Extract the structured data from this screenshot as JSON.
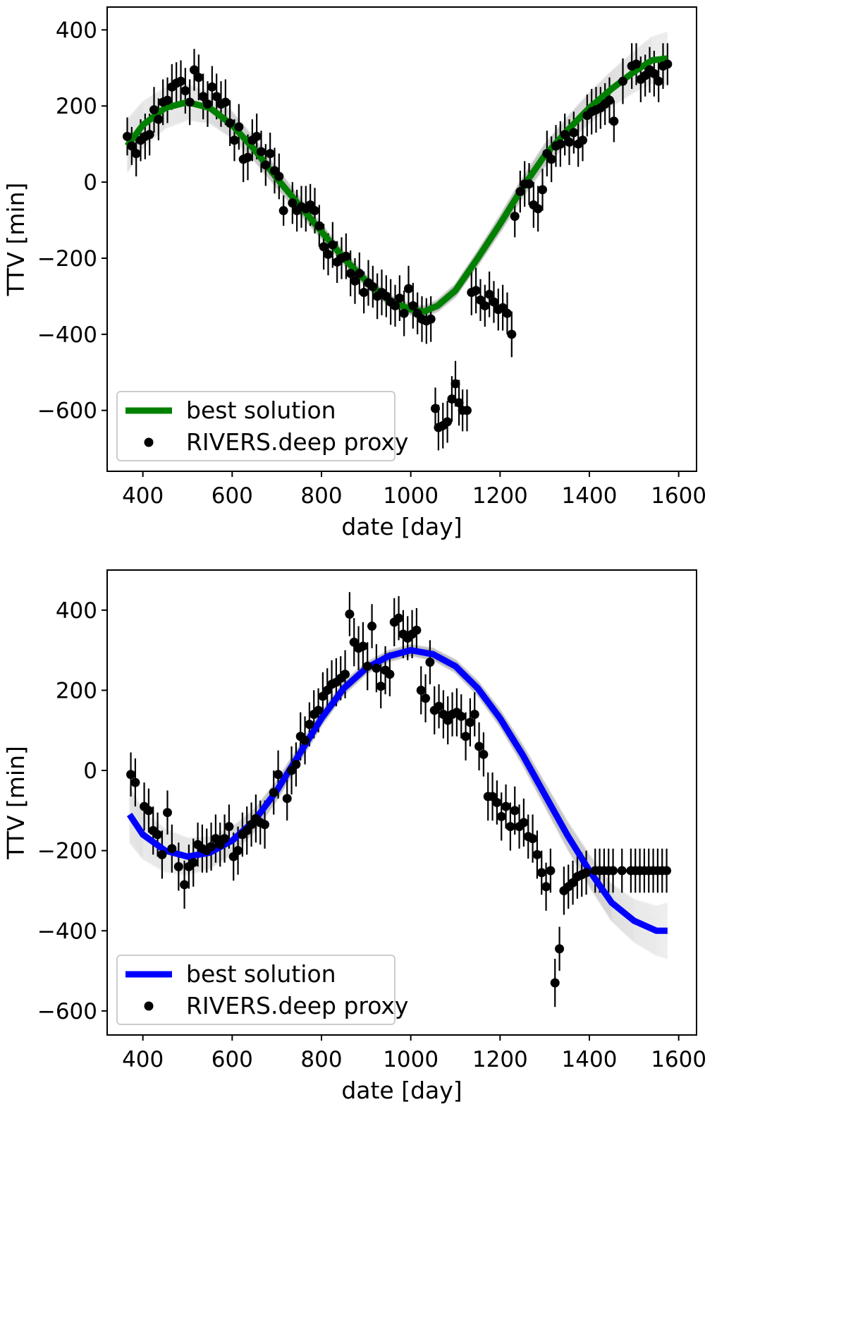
{
  "chart_data": [
    {
      "type": "scatter",
      "title": "",
      "xlabel": "date [day]",
      "ylabel": "TTV [min]",
      "xlim": [
        320,
        1640
      ],
      "ylim": [
        -760,
        460
      ],
      "xticks": [
        400,
        600,
        800,
        1000,
        1200,
        1400,
        1600
      ],
      "yticks": [
        400,
        200,
        0,
        -200,
        -400,
        -600
      ],
      "legend": {
        "position": "lower-left",
        "entries": [
          "best solution",
          "RIVERS.deep proxy"
        ]
      },
      "best_solution": {
        "name": "best solution",
        "color": "#008000",
        "x": [
          365,
          400,
          450,
          500,
          550,
          600,
          650,
          700,
          750,
          800,
          850,
          900,
          950,
          1000,
          1030,
          1060,
          1100,
          1150,
          1200,
          1250,
          1300,
          1350,
          1400,
          1450,
          1500,
          1540,
          1575
        ],
        "y": [
          95,
          150,
          195,
          210,
          195,
          150,
          85,
          10,
          -60,
          -130,
          -200,
          -260,
          -310,
          -335,
          -340,
          -325,
          -285,
          -200,
          -110,
          -15,
          70,
          135,
          195,
          245,
          290,
          320,
          325
        ]
      },
      "points": {
        "name": "RIVERS.deep proxy",
        "color": "#000000",
        "x": [
          365,
          375,
          385,
          395,
          405,
          415,
          425,
          435,
          445,
          455,
          465,
          475,
          485,
          495,
          505,
          515,
          525,
          535,
          545,
          555,
          565,
          575,
          585,
          595,
          605,
          615,
          625,
          635,
          645,
          655,
          665,
          675,
          685,
          695,
          705,
          715,
          735,
          745,
          755,
          765,
          775,
          785,
          795,
          805,
          815,
          825,
          835,
          845,
          855,
          865,
          875,
          885,
          895,
          905,
          915,
          925,
          935,
          945,
          955,
          965,
          975,
          985,
          995,
          1005,
          1015,
          1025,
          1035,
          1045,
          1055,
          1062,
          1072,
          1082,
          1092,
          1100,
          1108,
          1116,
          1126,
          1136,
          1146,
          1156,
          1166,
          1176,
          1186,
          1196,
          1206,
          1216,
          1226,
          1233,
          1245,
          1255,
          1265,
          1275,
          1285,
          1295,
          1305,
          1315,
          1325,
          1335,
          1345,
          1355,
          1365,
          1375,
          1385,
          1395,
          1405,
          1415,
          1425,
          1435,
          1445,
          1455,
          1475,
          1495,
          1505,
          1515,
          1525,
          1535,
          1545,
          1555,
          1565,
          1575
        ],
        "y": [
          120,
          95,
          75,
          110,
          120,
          125,
          190,
          165,
          210,
          215,
          250,
          260,
          265,
          240,
          210,
          295,
          275,
          225,
          205,
          250,
          225,
          205,
          210,
          155,
          110,
          145,
          60,
          65,
          110,
          120,
          80,
          45,
          75,
          30,
          15,
          -75,
          -55,
          -75,
          -65,
          -70,
          -60,
          -75,
          -115,
          -170,
          -190,
          -165,
          -210,
          -200,
          -195,
          -240,
          -260,
          -240,
          -290,
          -265,
          -275,
          -300,
          -290,
          -300,
          -315,
          -325,
          -305,
          -345,
          -280,
          -325,
          -345,
          -360,
          -365,
          -360,
          -595,
          -645,
          -640,
          -630,
          -570,
          -530,
          -580,
          -600,
          -600,
          -290,
          -285,
          -310,
          -325,
          -295,
          -315,
          -335,
          -330,
          -345,
          -400,
          -90,
          -25,
          -5,
          -5,
          -60,
          -70,
          -20,
          75,
          60,
          95,
          100,
          125,
          105,
          130,
          100,
          110,
          175,
          185,
          190,
          195,
          205,
          215,
          160,
          265,
          305,
          310,
          270,
          280,
          295,
          285,
          265,
          305,
          310
        ],
        "err": [
          50,
          50,
          60,
          55,
          60,
          55,
          60,
          55,
          60,
          60,
          60,
          55,
          55,
          60,
          60,
          55,
          60,
          60,
          60,
          55,
          60,
          60,
          60,
          60,
          55,
          60,
          60,
          60,
          55,
          60,
          55,
          55,
          55,
          60,
          60,
          40,
          55,
          55,
          55,
          60,
          55,
          60,
          55,
          60,
          55,
          60,
          55,
          55,
          60,
          60,
          60,
          55,
          55,
          60,
          55,
          60,
          60,
          55,
          60,
          55,
          60,
          60,
          60,
          60,
          55,
          60,
          60,
          60,
          55,
          60,
          60,
          55,
          60,
          60,
          60,
          55,
          55,
          60,
          60,
          55,
          55,
          60,
          55,
          55,
          60,
          55,
          60,
          55,
          55,
          60,
          55,
          60,
          60,
          55,
          60,
          60,
          55,
          60,
          55,
          60,
          55,
          60,
          55,
          55,
          60,
          60,
          55,
          55,
          60,
          55,
          60,
          60,
          55,
          60,
          55,
          60,
          60,
          55,
          60,
          55
        ]
      }
    },
    {
      "type": "scatter",
      "title": "",
      "xlabel": "date [day]",
      "ylabel": "TTV [min]",
      "xlim": [
        320,
        1640
      ],
      "ylim": [
        -660,
        500
      ],
      "xticks": [
        400,
        600,
        800,
        1000,
        1200,
        1400,
        1600
      ],
      "yticks": [
        400,
        200,
        0,
        -200,
        -400,
        -600
      ],
      "legend": {
        "position": "lower-left",
        "entries": [
          "best solution",
          "RIVERS.deep proxy"
        ]
      },
      "best_solution": {
        "name": "best solution",
        "color": "#0000ff",
        "x": [
          370,
          400,
          450,
          500,
          550,
          600,
          650,
          700,
          750,
          800,
          850,
          900,
          950,
          1000,
          1050,
          1100,
          1150,
          1200,
          1250,
          1300,
          1350,
          1400,
          1450,
          1500,
          1550,
          1575
        ],
        "y": [
          -110,
          -160,
          -200,
          -215,
          -205,
          -175,
          -125,
          -50,
          40,
          130,
          205,
          255,
          285,
          300,
          290,
          260,
          205,
          130,
          40,
          -60,
          -160,
          -250,
          -330,
          -375,
          -400,
          -400
        ]
      },
      "points": {
        "name": "RIVERS.deep proxy",
        "color": "#000000",
        "x": [
          373,
          383,
          403,
          413,
          423,
          433,
          443,
          455,
          465,
          480,
          493,
          503,
          513,
          523,
          533,
          543,
          553,
          563,
          573,
          583,
          593,
          603,
          613,
          623,
          633,
          643,
          653,
          663,
          673,
          693,
          703,
          723,
          733,
          743,
          753,
          763,
          773,
          783,
          793,
          803,
          813,
          823,
          833,
          843,
          853,
          863,
          873,
          883,
          893,
          903,
          913,
          923,
          933,
          943,
          953,
          963,
          973,
          983,
          993,
          1003,
          1013,
          1023,
          1033,
          1043,
          1053,
          1063,
          1073,
          1083,
          1093,
          1103,
          1113,
          1123,
          1133,
          1143,
          1153,
          1163,
          1173,
          1183,
          1193,
          1203,
          1213,
          1223,
          1233,
          1243,
          1253,
          1263,
          1273,
          1283,
          1293,
          1303,
          1313,
          1323,
          1333,
          1343,
          1353,
          1363,
          1373,
          1383,
          1393,
          1413,
          1423,
          1433,
          1443,
          1453,
          1473,
          1493,
          1503,
          1513,
          1523,
          1533,
          1543,
          1553,
          1563,
          1573
        ],
        "y": [
          -10,
          -30,
          -90,
          -100,
          -150,
          -160,
          -210,
          -105,
          -195,
          -240,
          -285,
          -240,
          -230,
          -185,
          -195,
          -200,
          -190,
          -170,
          -185,
          -170,
          -140,
          -215,
          -200,
          -160,
          -150,
          -135,
          -120,
          -130,
          -135,
          -55,
          -10,
          -70,
          0,
          15,
          85,
          75,
          115,
          140,
          150,
          185,
          200,
          215,
          220,
          230,
          240,
          390,
          320,
          305,
          310,
          260,
          360,
          255,
          210,
          250,
          240,
          370,
          380,
          340,
          330,
          340,
          350,
          200,
          180,
          270,
          150,
          160,
          140,
          125,
          140,
          145,
          135,
          85,
          120,
          140,
          60,
          40,
          -65,
          -65,
          -80,
          -115,
          -90,
          -140,
          -100,
          -140,
          -130,
          -165,
          -170,
          -210,
          -255,
          -290,
          -250,
          -530,
          -445,
          -300,
          -290,
          -280,
          -265,
          -260,
          -255,
          -250,
          -250,
          -250,
          -250,
          -250,
          -250,
          -250,
          -250,
          -250,
          -250,
          -250,
          -250,
          -250,
          -250,
          -250
        ],
        "err": [
          55,
          60,
          60,
          55,
          60,
          55,
          60,
          55,
          60,
          60,
          60,
          55,
          60,
          55,
          60,
          55,
          60,
          60,
          55,
          60,
          55,
          60,
          60,
          55,
          60,
          55,
          60,
          55,
          60,
          55,
          60,
          55,
          60,
          55,
          60,
          60,
          55,
          60,
          55,
          60,
          55,
          60,
          60,
          55,
          60,
          55,
          60,
          55,
          60,
          60,
          55,
          60,
          55,
          60,
          55,
          60,
          55,
          60,
          55,
          60,
          55,
          60,
          60,
          55,
          60,
          55,
          60,
          60,
          55,
          60,
          55,
          60,
          60,
          55,
          60,
          55,
          60,
          60,
          55,
          60,
          55,
          60,
          60,
          55,
          60,
          55,
          60,
          60,
          55,
          60,
          55,
          60,
          55,
          60,
          55,
          55,
          55,
          55,
          55,
          55,
          55,
          55,
          55,
          55,
          55,
          55,
          55,
          55,
          55,
          55,
          55,
          55,
          55,
          55
        ]
      }
    }
  ]
}
